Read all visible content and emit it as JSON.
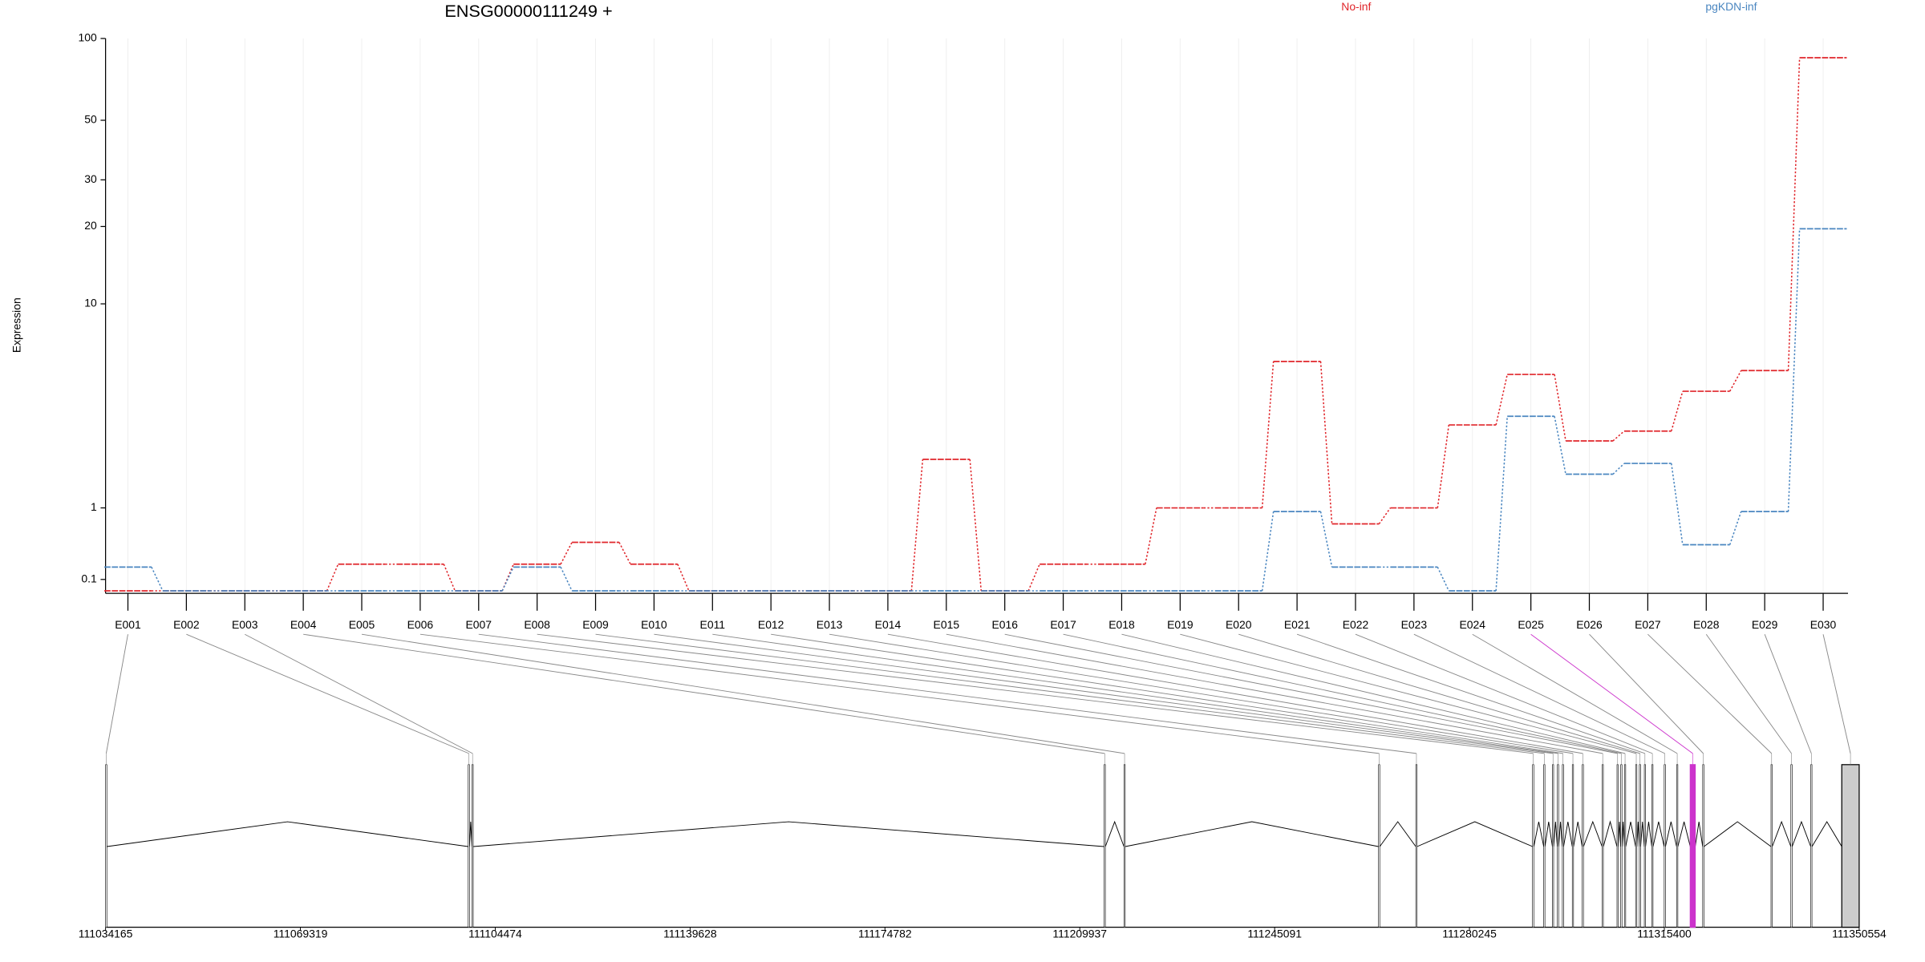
{
  "chart_data": {
    "type": "exon-usage",
    "title": "ENSG00000111249 +",
    "y_label": "Expression",
    "yscale": "log1p",
    "ylim": [
      0,
      100
    ],
    "yticks": [
      0.1,
      1,
      10,
      20,
      30,
      50,
      100
    ],
    "grid": true,
    "legend": "top-right",
    "categories": [
      "E001",
      "E002",
      "E003",
      "E004",
      "E005",
      "E006",
      "E007",
      "E008",
      "E009",
      "E010",
      "E011",
      "E012",
      "E013",
      "E014",
      "E015",
      "E016",
      "E017",
      "E018",
      "E019",
      "E020",
      "E021",
      "E022",
      "E023",
      "E024",
      "E025",
      "E026",
      "E027",
      "E028",
      "E029",
      "E030"
    ],
    "series": [
      {
        "name": "No-inf",
        "color": "#e0262b",
        "values": [
          0,
          0,
          0,
          0,
          0.25,
          0.25,
          0,
          0.25,
          0.5,
          0.25,
          0,
          0,
          0,
          0,
          2.0,
          0,
          0.25,
          0.25,
          1.0,
          1.0,
          5.8,
          0.75,
          1.0,
          3.0,
          5.1,
          2.5,
          2.8,
          4.3,
          5.3,
          85
        ]
      },
      {
        "name": "pgKDN-inf",
        "color": "#4a86c0",
        "values": [
          0.22,
          0,
          0,
          0,
          0,
          0,
          0,
          0.22,
          0,
          0,
          0,
          0,
          0,
          0,
          0,
          0,
          0,
          0,
          0,
          0,
          0.94,
          0.22,
          0.22,
          0,
          3.3,
          1.65,
          1.9,
          0.47,
          0.94,
          19.6
        ]
      }
    ],
    "highlight_exon": "E025",
    "highlight_color": "#cc33cc",
    "xlim": [
      111034165,
      111350554
    ],
    "xticks": [
      111034165,
      111069319,
      111104474,
      111139628,
      111174782,
      111209937,
      111245091,
      111280245,
      111315400,
      111350554
    ],
    "exons": [
      {
        "start": 111034165,
        "end": 111034400
      },
      {
        "start": 111099593,
        "end": 111099820
      },
      {
        "start": 111100266,
        "end": 111100500
      },
      {
        "start": 111214317,
        "end": 111214550
      },
      {
        "start": 111217902,
        "end": 111218130
      },
      {
        "start": 111263837,
        "end": 111264060
      },
      {
        "start": 111270559,
        "end": 111270790
      },
      {
        "start": 111291621,
        "end": 111291850
      },
      {
        "start": 111293637,
        "end": 111293860
      },
      {
        "start": 111295206,
        "end": 111295430
      },
      {
        "start": 111296102,
        "end": 111296330
      },
      {
        "start": 111296998,
        "end": 111297220
      },
      {
        "start": 111298791,
        "end": 111299020
      },
      {
        "start": 111300584,
        "end": 111300810
      },
      {
        "start": 111304169,
        "end": 111304400
      },
      {
        "start": 111306858,
        "end": 111307080
      },
      {
        "start": 111307530,
        "end": 111307760
      },
      {
        "start": 111308202,
        "end": 111308430
      },
      {
        "start": 111310219,
        "end": 111310450
      },
      {
        "start": 111310891,
        "end": 111311120
      },
      {
        "start": 111311787,
        "end": 111312010
      },
      {
        "start": 111313132,
        "end": 111313360
      },
      {
        "start": 111315372,
        "end": 111315600
      },
      {
        "start": 111317613,
        "end": 111317840
      },
      {
        "start": 111320078,
        "end": 111320974
      },
      {
        "start": 111322318,
        "end": 111322550
      },
      {
        "start": 111334643,
        "end": 111334870
      },
      {
        "start": 111338228,
        "end": 111338460
      },
      {
        "start": 111341813,
        "end": 111342040
      },
      {
        "start": 111347415,
        "end": 111350554
      }
    ]
  }
}
